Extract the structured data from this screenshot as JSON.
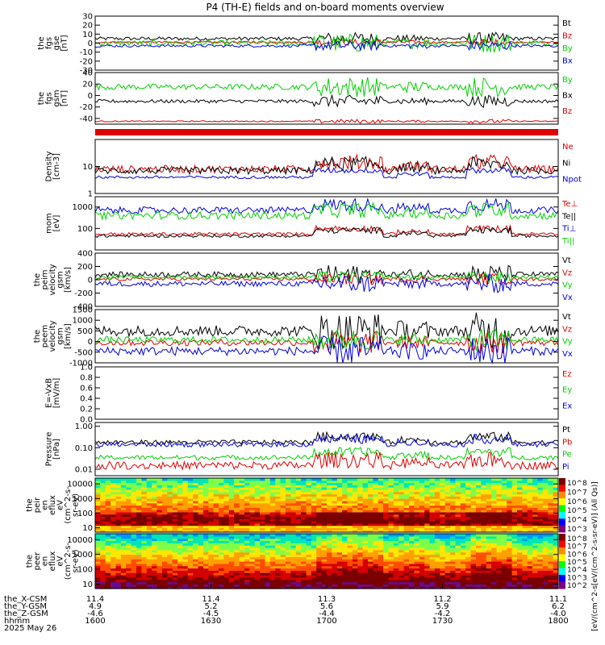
{
  "title": "P4 (TH-E) fields and on-board moments overview",
  "colors": {
    "black": "#000000",
    "red": "#e00000",
    "green": "#00d000",
    "blue": "#0000e0"
  },
  "chart_data": [
    {
      "type": "line",
      "ylabel": [
        "the",
        "fgs",
        "gse",
        "[nT]"
      ],
      "ylim": [
        -30,
        30
      ],
      "yticks": [
        "30",
        "20",
        "10",
        "0",
        "-10",
        "-20",
        "-30"
      ],
      "legend": [
        {
          "name": "Bt",
          "color": "black"
        },
        {
          "name": "Bz",
          "color": "red"
        },
        {
          "name": "By",
          "color": "green"
        },
        {
          "name": "Bx",
          "color": "blue"
        }
      ],
      "series": [
        {
          "name": "Bt",
          "color": "black",
          "base": 5,
          "noise": 2
        },
        {
          "name": "Bz",
          "color": "red",
          "base": 1,
          "noise": 1
        },
        {
          "name": "By",
          "color": "green",
          "base": 0,
          "noise": 3
        },
        {
          "name": "Bx",
          "color": "blue",
          "base": -3,
          "noise": 1.5
        }
      ]
    },
    {
      "type": "line",
      "ylabel": [
        "the",
        "fgs",
        "gsm",
        "[nT]"
      ],
      "ylim": [
        -50,
        40
      ],
      "yticks": [
        "40",
        "20",
        "0",
        "-20",
        "-40"
      ],
      "legend": [
        {
          "name": "By",
          "color": "green"
        },
        {
          "name": "Bx",
          "color": "black"
        },
        {
          "name": "Bz",
          "color": "red"
        }
      ],
      "series": [
        {
          "name": "By",
          "color": "green",
          "base": 15,
          "noise": 5
        },
        {
          "name": "Bx",
          "color": "black",
          "base": -10,
          "noise": 3
        },
        {
          "name": "Bz",
          "color": "red",
          "base": -45,
          "noise": 1
        }
      ]
    },
    {
      "type": "line",
      "ylabel": [
        "Density",
        "[cm-3]"
      ],
      "ylim": [
        1,
        100
      ],
      "yticks": [
        "10",
        "1"
      ],
      "legend": [
        {
          "name": "Ne",
          "color": "red"
        },
        {
          "name": "Ni",
          "color": "black"
        },
        {
          "name": "Npot",
          "color": "blue"
        }
      ],
      "series": [
        {
          "name": "Ne",
          "color": "red",
          "base": 8,
          "noise": 3
        },
        {
          "name": "Ni",
          "color": "black",
          "base": 7,
          "noise": 2.5
        },
        {
          "name": "Npot",
          "color": "blue",
          "base": 4,
          "noise": 0.5
        }
      ]
    },
    {
      "type": "line",
      "ylabel": [
        "mom",
        "[eV]"
      ],
      "ylim": [
        10,
        3000
      ],
      "yticks": [
        "1000",
        "100"
      ],
      "legend": [
        {
          "name": "Te⊥",
          "color": "red"
        },
        {
          "name": "Te||",
          "color": "black"
        },
        {
          "name": "Ti⊥",
          "color": "blue"
        },
        {
          "name": "Ti||",
          "color": "green"
        }
      ],
      "series": [
        {
          "name": "Ti⊥",
          "color": "blue",
          "base": 700,
          "noise": 300
        },
        {
          "name": "Ti||",
          "color": "green",
          "base": 400,
          "noise": 200
        },
        {
          "name": "Te⊥",
          "color": "red",
          "base": 55,
          "noise": 10
        },
        {
          "name": "Te||",
          "color": "black",
          "base": 45,
          "noise": 8
        }
      ]
    },
    {
      "type": "line",
      "ylabel": [
        "the",
        "peim",
        "velocity",
        "gsm",
        "[km/s]"
      ],
      "ylim": [
        -400,
        400
      ],
      "yticks": [
        "400",
        "200",
        "0",
        "-200",
        "-400"
      ],
      "legend": [
        {
          "name": "Vt",
          "color": "black"
        },
        {
          "name": "Vz",
          "color": "red"
        },
        {
          "name": "Vy",
          "color": "green"
        },
        {
          "name": "Vx",
          "color": "blue"
        }
      ],
      "series": [
        {
          "name": "Vt",
          "color": "black",
          "base": 80,
          "noise": 40
        },
        {
          "name": "Vz",
          "color": "red",
          "base": 10,
          "noise": 25
        },
        {
          "name": "Vy",
          "color": "green",
          "base": 40,
          "noise": 25
        },
        {
          "name": "Vx",
          "color": "blue",
          "base": -60,
          "noise": 40
        }
      ]
    },
    {
      "type": "line",
      "ylabel": [
        "the",
        "peem",
        "velocity",
        "gsm",
        "[km/s]"
      ],
      "ylim": [
        -1000,
        1500
      ],
      "yticks": [
        "1500",
        "1000",
        "500",
        "0",
        "-500",
        "-1000"
      ],
      "legend": [
        {
          "name": "Vt",
          "color": "black"
        },
        {
          "name": "Vz",
          "color": "red"
        },
        {
          "name": "Vy",
          "color": "green"
        },
        {
          "name": "Vx",
          "color": "blue"
        }
      ],
      "series": [
        {
          "name": "Vt",
          "color": "black",
          "base": 500,
          "noise": 250
        },
        {
          "name": "Vz",
          "color": "red",
          "base": -50,
          "noise": 150
        },
        {
          "name": "Vy",
          "color": "green",
          "base": 80,
          "noise": 150
        },
        {
          "name": "Vx",
          "color": "blue",
          "base": -450,
          "noise": 200
        }
      ]
    },
    {
      "type": "line",
      "ylabel": [
        "E=-VxB",
        "[mV/m]"
      ],
      "ylim": [
        0,
        1
      ],
      "yticks": [
        "1.0",
        "0.8",
        "0.6",
        "0.4",
        "0.2",
        "0.0"
      ],
      "legend": [
        {
          "name": "Ez",
          "color": "red"
        },
        {
          "name": "Ey",
          "color": "green"
        },
        {
          "name": "Ex",
          "color": "blue"
        }
      ],
      "series": []
    },
    {
      "type": "line",
      "ylabel": [
        "Pressure",
        "[nPa]"
      ],
      "ylim": [
        0.005,
        1.5
      ],
      "yticks": [
        "1.00",
        "0.10",
        "0.01"
      ],
      "legend": [
        {
          "name": "Pt",
          "color": "black"
        },
        {
          "name": "Pb",
          "color": "red"
        },
        {
          "name": "Pe",
          "color": "green"
        },
        {
          "name": "Pi",
          "color": "blue"
        }
      ],
      "series": [
        {
          "name": "Pt",
          "color": "black",
          "base": 0.18,
          "noise": 0.05
        },
        {
          "name": "Pi",
          "color": "blue",
          "base": 0.14,
          "noise": 0.04
        },
        {
          "name": "Pe",
          "color": "green",
          "base": 0.035,
          "noise": 0.01
        },
        {
          "name": "Pb",
          "color": "red",
          "base": 0.015,
          "noise": 0.008
        }
      ]
    },
    {
      "type": "heatmap",
      "ylabel": [
        "the",
        "peir",
        "en",
        "eflux",
        "eV",
        "(cm^2-s-",
        "sr-eV)"
      ],
      "ylim": [
        5,
        25000
      ],
      "yticks": [
        "10000",
        "1000",
        "100",
        "10"
      ],
      "colorbar": [
        "10^8",
        "10^7",
        "10^6",
        "10^5",
        "10^4",
        "10^3"
      ]
    },
    {
      "type": "heatmap",
      "ylabel": [
        "the",
        "peer",
        "en",
        "eflux",
        "eV",
        "(cm^2-s-",
        "sr-eV)"
      ],
      "ylim": [
        5,
        25000
      ],
      "yticks": [
        "10000",
        "1000",
        "100",
        "10"
      ],
      "colorbar": [
        "10^8",
        "10^7",
        "10^6",
        "10^5",
        "10^4",
        "10^3",
        "10^2"
      ]
    }
  ],
  "colorbar_label": "[eV/(cm^2-s[eV/(cm^2-s-sr-eV)]  (All Qs)]",
  "time_axis": {
    "rows": [
      {
        "label": "the_X-CSM",
        "values": [
          "11.4",
          "11.4",
          "11.3",
          "11.2",
          "11.1"
        ]
      },
      {
        "label": "the_Y-GSM",
        "values": [
          "4.9",
          "5.2",
          "5.6",
          "5.9",
          "6.2"
        ]
      },
      {
        "label": "the_Z-GSM",
        "values": [
          "-4.6",
          "-4.5",
          "-4.4",
          "-4.2",
          "-4.0"
        ]
      },
      {
        "label": "hhmm",
        "values": [
          "1600",
          "1630",
          "1700",
          "1730",
          "1800"
        ]
      }
    ],
    "date": "2025 May 26"
  }
}
